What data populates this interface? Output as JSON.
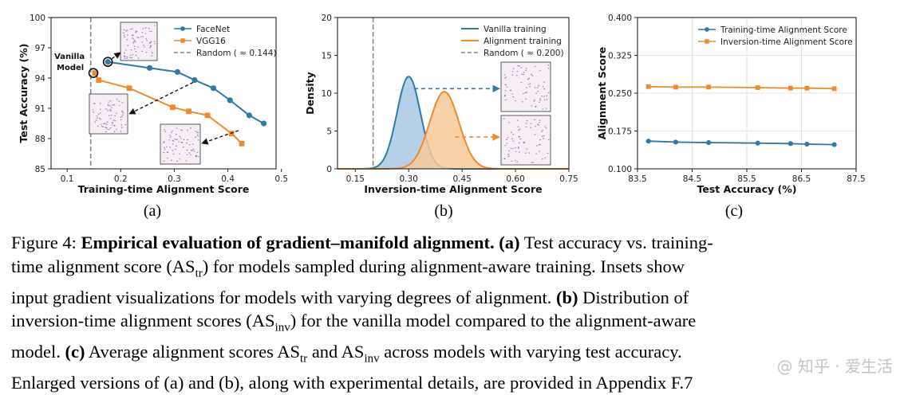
{
  "chart_data": [
    {
      "type": "line",
      "subfigure_label": "(a)",
      "xlabel": "Training-time Alignment Score",
      "ylabel": "Test Accuracy (%)",
      "xlim": [
        0.07,
        0.49
      ],
      "ylim": [
        85,
        100
      ],
      "xticks": [
        "0.1",
        "0.2",
        "0.3",
        "0.4",
        "0.5"
      ],
      "yticks": [
        "85",
        "88",
        "91",
        "94",
        "97",
        "100"
      ],
      "grid": false,
      "legend_placement": "top-right",
      "series": [
        {
          "name": "FaceNet",
          "color": "#2f7aa8",
          "marker": "circle",
          "x": [
            0.176,
            0.254,
            0.306,
            0.338,
            0.373,
            0.404,
            0.44,
            0.467
          ],
          "y": [
            95.6,
            95.0,
            94.6,
            93.8,
            93.0,
            91.8,
            90.3,
            89.5
          ]
        },
        {
          "name": "VGG16",
          "color": "#ee8a2e",
          "marker": "square",
          "x": [
            0.152,
            0.159,
            0.216,
            0.297,
            0.327,
            0.362,
            0.407,
            0.426
          ],
          "y": [
            94.5,
            93.8,
            93.0,
            91.1,
            90.7,
            90.3,
            88.5,
            87.5
          ]
        },
        {
          "name": "Random ( ≈ 0.144)",
          "color": "#888888",
          "style": "dashed-vertical",
          "x": 0.144
        }
      ],
      "annotations": [
        {
          "text": "Vanilla\nModel",
          "x": 0.145,
          "y": 95.0
        }
      ]
    },
    {
      "type": "area",
      "subfigure_label": "(b)",
      "xlabel": "Inversion-time Alignment Score",
      "ylabel": "Density",
      "xlim": [
        0.1,
        0.75
      ],
      "ylim": [
        0,
        20
      ],
      "xticks": [
        "0.15",
        "0.30",
        "0.45",
        "0.60",
        "0.75"
      ],
      "yticks": [
        "0",
        "5",
        "10",
        "15",
        "20"
      ],
      "grid": false,
      "legend_placement": "top-right",
      "series": [
        {
          "name": "Vanilla training",
          "color": "#2f7aa8",
          "fill": "#a9c8e3",
          "distribution": "normal",
          "mean": 0.3,
          "std": 0.033,
          "peak": 12.2
        },
        {
          "name": "Alignment training",
          "color": "#ee8a2e",
          "fill": "#f8c99a",
          "distribution": "normal",
          "mean": 0.4,
          "std": 0.041,
          "peak": 10.2
        },
        {
          "name": "Random ( ≈ 0.200)",
          "color": "#888888",
          "style": "dashed-vertical",
          "x": 0.2
        }
      ]
    },
    {
      "type": "line",
      "subfigure_label": "(c)",
      "xlabel": "Test Accuracy (%)",
      "ylabel": "Alignment Score",
      "xlim": [
        83.5,
        87.5
      ],
      "ylim": [
        0.1,
        0.4
      ],
      "xticks": [
        "83.5",
        "84.5",
        "85.5",
        "86.5",
        "87.5"
      ],
      "yticks": [
        "0.100",
        "0.175",
        "0.250",
        "0.325",
        "0.400"
      ],
      "grid": true,
      "legend_placement": "top-right",
      "series": [
        {
          "name": "Training-time Alignment Score",
          "color": "#2f7aa8",
          "marker": "circle",
          "x": [
            83.7,
            84.2,
            84.8,
            85.7,
            86.3,
            86.6,
            87.1
          ],
          "y": [
            0.155,
            0.153,
            0.152,
            0.151,
            0.15,
            0.149,
            0.148
          ]
        },
        {
          "name": "Inversion-time Alignment Score",
          "color": "#ee8a2e",
          "marker": "square",
          "x": [
            83.7,
            84.2,
            84.8,
            85.7,
            86.3,
            86.6,
            87.1
          ],
          "y": [
            0.263,
            0.262,
            0.262,
            0.261,
            0.26,
            0.26,
            0.259
          ]
        }
      ]
    }
  ],
  "caption": {
    "lines": [
      [
        {
          "t": "Figure 4: ",
          "b": false
        },
        {
          "t": "Empirical evaluation of gradient–manifold alignment. (a)",
          "b": true
        },
        {
          "t": " Test accuracy vs. training-",
          "b": false
        }
      ],
      [
        {
          "t": "time alignment score (AS",
          "b": false
        },
        {
          "t": "tr",
          "sub": true
        },
        {
          "t": ") for models sampled during alignment-aware training.  Insets show",
          "b": false
        }
      ],
      [
        {
          "t": "input gradient visualizations for models with varying degrees of alignment.  ",
          "b": false
        },
        {
          "t": "(b)",
          "b": true
        },
        {
          "t": " Distribution of",
          "b": false
        }
      ],
      [
        {
          "t": "inversion-time alignment scores (AS",
          "b": false
        },
        {
          "t": "inv",
          "sub": true
        },
        {
          "t": ") for the vanilla model compared to the alignment-aware",
          "b": false
        }
      ],
      [
        {
          "t": "model.  ",
          "b": false
        },
        {
          "t": "(c)",
          "b": true
        },
        {
          "t": " Average alignment scores AS",
          "b": false
        },
        {
          "t": "tr",
          "sub": true
        },
        {
          "t": " and AS",
          "b": false
        },
        {
          "t": "inv",
          "sub": true
        },
        {
          "t": " across models with varying test accuracy.",
          "b": false
        }
      ],
      [
        {
          "t": "Enlarged versions of (a) and (b), along with experimental details, are provided in Appendix F.7",
          "b": false
        }
      ]
    ]
  },
  "watermark": "@ 知乎 · 爱生活"
}
